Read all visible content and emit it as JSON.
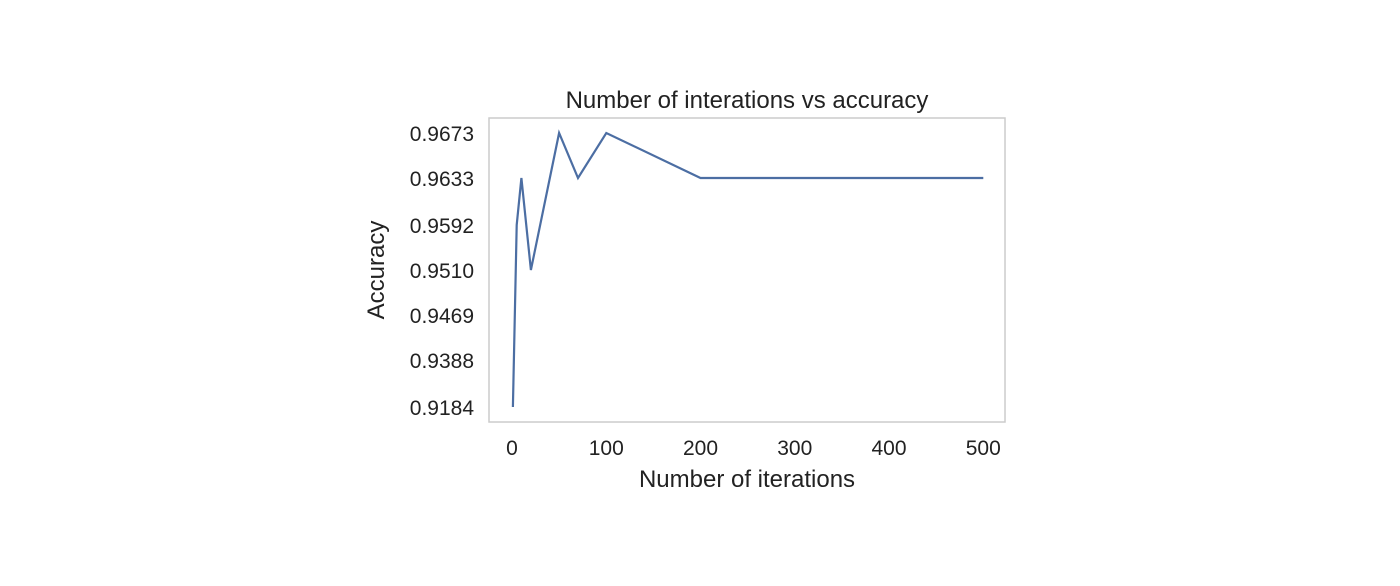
{
  "chart_data": {
    "type": "line",
    "title": "Number of interations vs accuracy",
    "xlabel": "Number of iterations",
    "ylabel": "Accuracy",
    "grid": false,
    "x_ticks": [
      0,
      100,
      200,
      300,
      400,
      500
    ],
    "x_tick_labels": [
      "0",
      "100",
      "200",
      "300",
      "400",
      "500"
    ],
    "y_ticks": [
      0.9184,
      0.9388,
      0.9469,
      0.951,
      0.9592,
      0.9633,
      0.9673
    ],
    "y_tick_labels": [
      "0.9184",
      "0.9388",
      "0.9469",
      "0.9510",
      "0.9592",
      "0.9633",
      "0.9673"
    ],
    "series": [
      {
        "color": "#4c6ea3",
        "x": [
          1,
          5,
          10,
          20,
          50,
          70,
          100,
          200,
          500
        ],
        "y": [
          0.9184,
          0.9592,
          0.9633,
          0.951,
          0.9673,
          0.9633,
          0.9673,
          0.9633,
          0.9633
        ]
      }
    ]
  }
}
